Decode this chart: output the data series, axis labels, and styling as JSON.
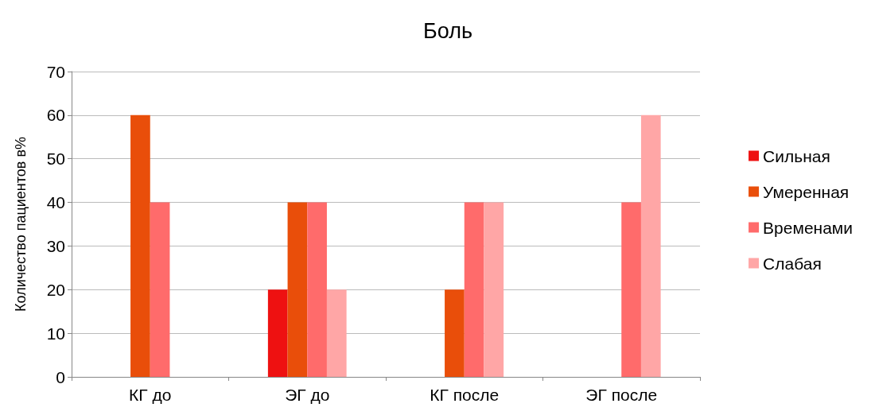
{
  "chart_data": {
    "type": "bar",
    "title": "Боль",
    "ylabel": "Количество пациентов в%",
    "categories": [
      "КГ до",
      "ЭГ до",
      "КГ после",
      "ЭГ после"
    ],
    "series": [
      {
        "name": "Сильная",
        "color": "#ee1111",
        "values": [
          0,
          20,
          0,
          0
        ]
      },
      {
        "name": "Умеренная",
        "color": "#e94e0a",
        "values": [
          60,
          40,
          20,
          0
        ]
      },
      {
        "name": "Временами",
        "color": "#ff6b6b",
        "values": [
          40,
          40,
          40,
          40
        ]
      },
      {
        "name": "Слабая",
        "color": "#ffa6a6",
        "values": [
          0,
          20,
          40,
          60
        ]
      }
    ],
    "ylim": [
      0,
      70
    ],
    "yticks": [
      0,
      10,
      20,
      30,
      40,
      50,
      60,
      70
    ],
    "grid": "y",
    "legend": "right"
  }
}
